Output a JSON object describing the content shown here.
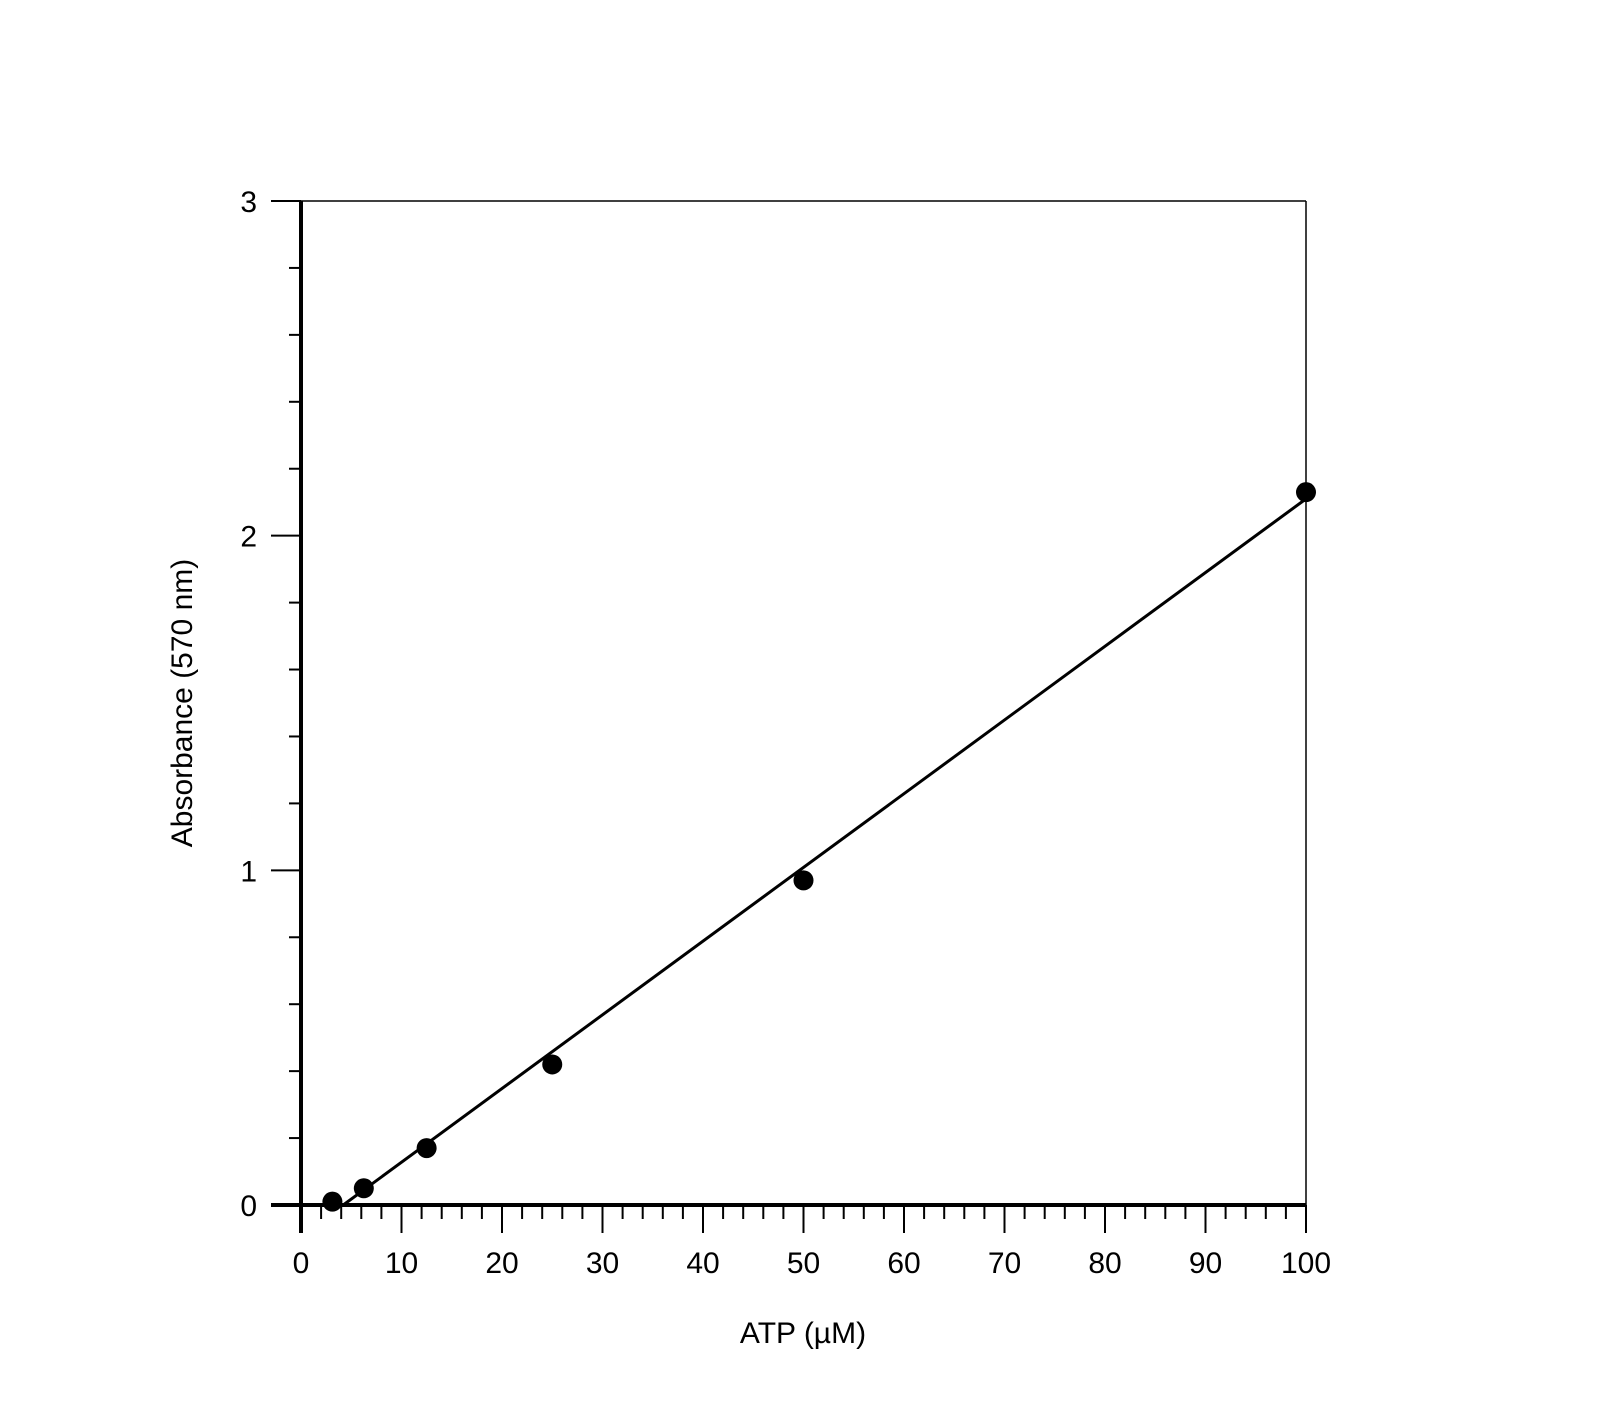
{
  "chart_data": {
    "type": "scatter",
    "title": "",
    "xlabel": "ATP (µM)",
    "ylabel": "Absorbance (570 nm)",
    "xlim": [
      0,
      100
    ],
    "ylim": [
      0,
      3
    ],
    "x_ticks": [
      "0",
      "10",
      "20",
      "30",
      "40",
      "50",
      "60",
      "70",
      "80",
      "90",
      "100"
    ],
    "y_ticks": [
      "0",
      "1",
      "2",
      "3"
    ],
    "grid": false,
    "series": [
      {
        "points": [
          {
            "x": 3.125,
            "y": 0.01
          },
          {
            "x": 6.25,
            "y": 0.05
          },
          {
            "x": 12.5,
            "y": 0.17
          },
          {
            "x": 25,
            "y": 0.42
          },
          {
            "x": 50,
            "y": 0.97
          },
          {
            "x": 100,
            "y": 2.13
          }
        ],
        "fit_line": {
          "type": "linear",
          "x": [
            4.2,
            100
          ],
          "y": [
            0.0,
            2.11
          ]
        }
      }
    ],
    "colors": {
      "marker": "#000000",
      "line": "#000000",
      "axis": "#000000"
    }
  }
}
